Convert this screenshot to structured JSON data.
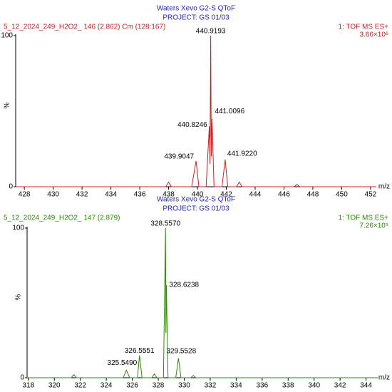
{
  "chart_data": [
    {
      "type": "line",
      "title": "Waters Xevo G2-S QToF",
      "subtitle": "PROJECT: GS 01/03",
      "header_left": "5_12_2024_249_H2O2_ 146 (2.862) Cm (128:167)",
      "header_right": "1: TOF MS ES+",
      "scale": "3.66×10⁶",
      "xlabel": "m/z",
      "ylabel": "%",
      "color": "#cc2020",
      "title_color": "#2323c8",
      "xlim": [
        427.4,
        452.4
      ],
      "xticks": [
        428,
        430,
        432,
        434,
        436,
        438,
        440,
        442,
        444,
        446,
        448,
        450,
        452
      ],
      "ylim": [
        0,
        100
      ],
      "yticks": [
        0,
        100
      ],
      "x": [
        427.4,
        437.8,
        438,
        438.2,
        439.6,
        439.9047,
        440.1,
        440.6,
        440.8246,
        440.87,
        440.9193,
        440.96,
        441.0096,
        441.15,
        441.7,
        441.922,
        442.1,
        442.7,
        442.9,
        443.1,
        446.7,
        446.9,
        447.1,
        452.4
      ],
      "values": [
        0,
        0,
        3,
        0,
        0,
        17,
        0,
        0,
        40,
        15,
        100,
        20,
        45,
        0,
        0,
        18,
        0,
        0,
        3,
        0,
        0,
        1.5,
        0,
        0
      ],
      "x_labels": [
        null,
        null,
        null,
        null,
        null,
        "439.9047",
        null,
        null,
        "440.8246",
        null,
        "440.9193",
        null,
        "441.0096",
        null,
        null,
        "441.9220",
        null,
        null,
        null,
        null,
        null,
        null,
        null,
        null
      ]
    },
    {
      "type": "line",
      "title": "Waters Xevo G2-S QToF",
      "subtitle": "PROJECT: GS 01/03",
      "header_left": "5_12_2024_249_H2O2_ 147 (2.879)",
      "header_right": "1: TOF MS ES+",
      "scale": "7.26×10⁵",
      "xlabel": "m/z",
      "ylabel": "%",
      "color": "#2a8a00",
      "title_color": "#2323c8",
      "xlim": [
        317.9,
        344.9
      ],
      "xticks": [
        318,
        320,
        322,
        324,
        326,
        328,
        330,
        332,
        334,
        336,
        338,
        340,
        342,
        344
      ],
      "ylim": [
        0,
        100
      ],
      "yticks": [
        0,
        100
      ],
      "x": [
        317.9,
        321.3,
        321.5,
        321.7,
        325.3,
        325.549,
        325.8,
        326.4,
        326.5551,
        326.75,
        327.5,
        327.7,
        327.9,
        328.4,
        328.557,
        328.59,
        328.6238,
        328.75,
        329.35,
        329.5528,
        329.75,
        330.5,
        330.7,
        330.9,
        344.9
      ],
      "values": [
        0,
        0,
        2,
        0,
        0,
        5,
        0,
        0,
        15,
        0,
        0,
        2.5,
        0,
        0,
        100,
        30,
        62,
        0,
        0,
        13,
        0,
        0,
        1.5,
        0,
        0
      ],
      "x_labels": [
        null,
        null,
        null,
        null,
        null,
        "325.5490",
        null,
        null,
        "326.5551",
        null,
        null,
        null,
        null,
        null,
        "328.5570",
        null,
        "328.6238",
        null,
        null,
        "329.5528",
        null,
        null,
        null,
        null,
        null
      ]
    }
  ]
}
